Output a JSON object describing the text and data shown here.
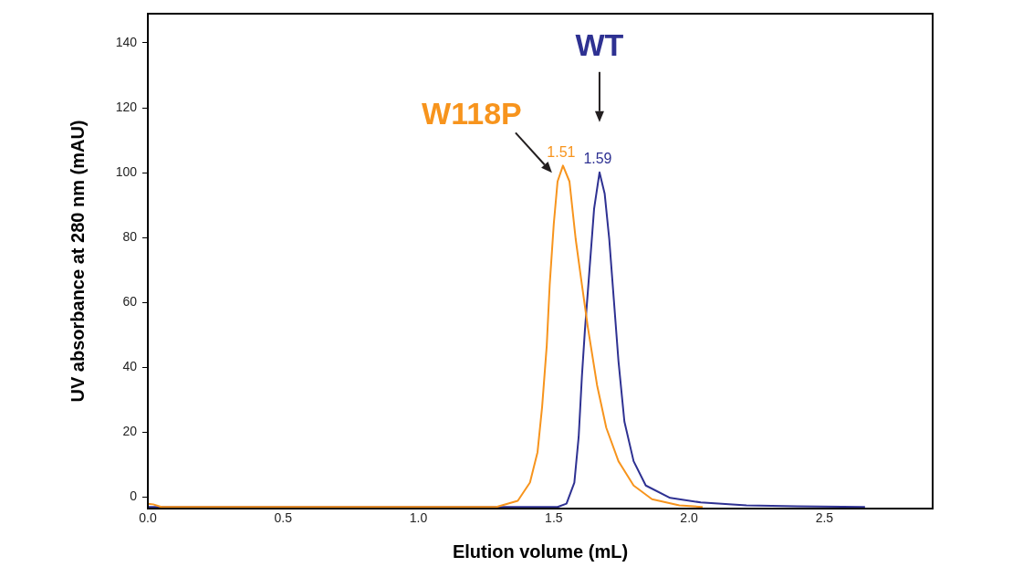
{
  "chart_data": {
    "type": "line",
    "xlabel": "Elution volume (mL)",
    "ylabel": "UV absorbance at 280 nm (mAU)",
    "xlim": [
      0,
      2.9
    ],
    "xticks": [
      {
        "value": 0,
        "label": "0.0"
      },
      {
        "value": 0.5,
        "label": "0.5"
      },
      {
        "value": 1,
        "label": "1.0"
      },
      {
        "value": 1.5,
        "label": "1.5"
      },
      {
        "value": 2,
        "label": "2.0"
      },
      {
        "value": 2.5,
        "label": "2.5"
      }
    ],
    "ylim": [
      -3.5,
      149
    ],
    "yticks": [
      0,
      20,
      40,
      60,
      80,
      100,
      120,
      140
    ],
    "grid": false,
    "legend": false,
    "marker": "none",
    "line_style": "solid",
    "series": [
      {
        "name": "W118P",
        "color": "#f7941d",
        "x": [
          0,
          0.02,
          0.05,
          1.288,
          1.367,
          1.412,
          1.44,
          1.457,
          1.474,
          1.485,
          1.5,
          1.514,
          1.534,
          1.558,
          1.581,
          1.604,
          1.626,
          1.66,
          1.694,
          1.739,
          1.795,
          1.863,
          1.964,
          2.05
        ],
        "values": [
          -2,
          -2.2,
          -3,
          -3,
          -1.1,
          4.5,
          13.9,
          27.9,
          46.7,
          65.5,
          84.2,
          97.3,
          102.2,
          97.3,
          79.5,
          65.5,
          52.3,
          34.5,
          21.4,
          11.1,
          3.6,
          -0.6,
          -2.5,
          -3
        ]
      },
      {
        "name": "WT",
        "color": "#2e3192",
        "x": [
          0,
          1.514,
          1.547,
          1.576,
          1.592,
          1.604,
          1.615,
          1.632,
          1.649,
          1.669,
          1.688,
          1.705,
          1.722,
          1.739,
          1.761,
          1.795,
          1.84,
          1.93,
          2.043,
          2.212,
          2.4,
          2.65
        ],
        "values": [
          -3,
          -3,
          -2,
          4.5,
          18.6,
          37.3,
          51.4,
          70.1,
          88.9,
          100.1,
          93.6,
          79.5,
          60.8,
          42,
          23.3,
          11.1,
          3.6,
          -0.2,
          -1.6,
          -2.5,
          -2.8,
          -3
        ]
      }
    ],
    "annotations": [
      {
        "text": "1.51",
        "x": 1.534,
        "y": 102.2
      },
      {
        "text": "1.59",
        "x": 1.669,
        "y": 100.1
      }
    ]
  }
}
